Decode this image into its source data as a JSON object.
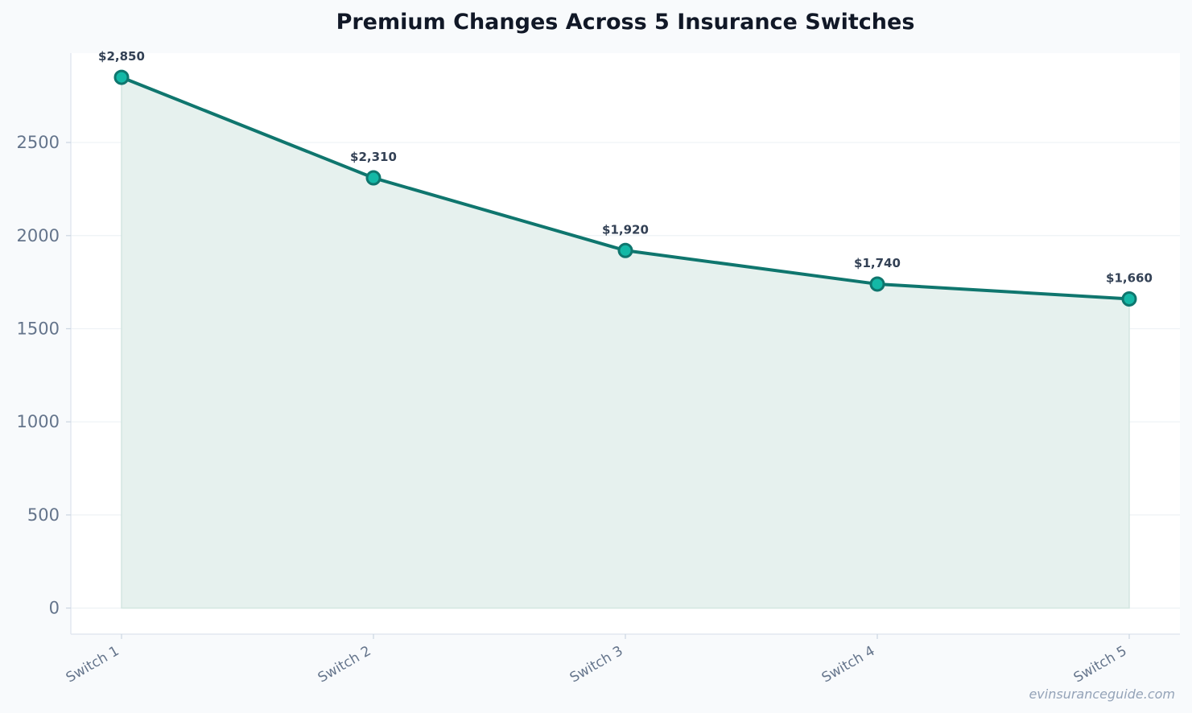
{
  "chart_data": {
    "type": "area",
    "title": "Premium Changes Across 5 Insurance Switches",
    "categories": [
      "Switch 1",
      "Switch 2",
      "Switch 3",
      "Switch 4",
      "Switch 5"
    ],
    "series": [
      {
        "values": [
          2850,
          2310,
          1920,
          1740,
          1660
        ],
        "data_labels": [
          "$2,850",
          "$2,310",
          "$1,920",
          "$1,740",
          "$1,660"
        ]
      }
    ],
    "yticks": [
      "0",
      "500",
      "1000",
      "1500",
      "2000",
      "2500"
    ],
    "ylim": [
      -140,
      2980
    ],
    "grid": true,
    "colors": {
      "line": "#0f766e",
      "fill": "#e6f1ee",
      "marker": "#14b8a6",
      "grid": "#eef2f5"
    }
  },
  "watermark": "evinsuranceguide.com"
}
